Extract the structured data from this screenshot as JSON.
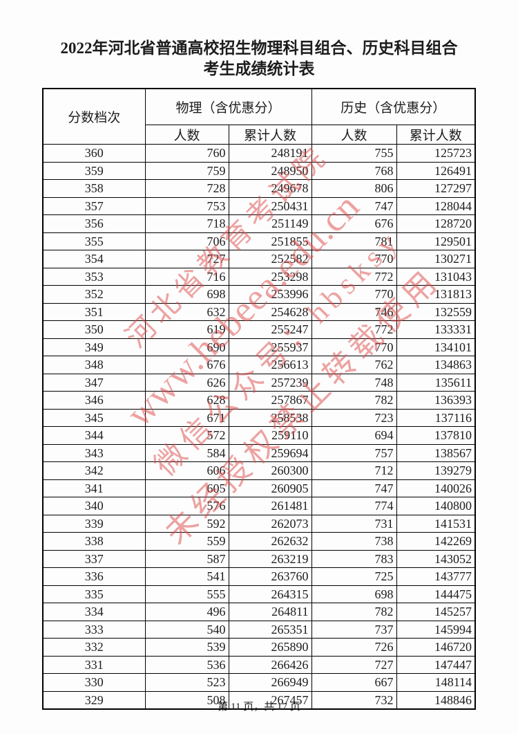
{
  "title": {
    "line1": "2022年河北省普通高校招生物理科目组合、历史科目组合",
    "line2": "考生成绩统计表"
  },
  "watermark": {
    "color_hex": "#dc4a48",
    "lines": [
      "河北省教育考试院",
      "www.hebeea.edu.cn",
      "微信公众号：hbsksy",
      "未经授权禁止转载使用"
    ]
  },
  "table": {
    "header": {
      "score_level": "分数档次",
      "physics_group": "物理（含优惠分）",
      "history_group": "历史（含优惠分）",
      "count": "人数",
      "cumulative": "累计人数"
    },
    "rows": [
      [
        360,
        760,
        248191,
        755,
        125723
      ],
      [
        359,
        759,
        248950,
        768,
        126491
      ],
      [
        358,
        728,
        249678,
        806,
        127297
      ],
      [
        357,
        753,
        250431,
        747,
        128044
      ],
      [
        356,
        718,
        251149,
        676,
        128720
      ],
      [
        355,
        706,
        251855,
        781,
        129501
      ],
      [
        354,
        727,
        252582,
        770,
        130271
      ],
      [
        353,
        716,
        253298,
        772,
        131043
      ],
      [
        352,
        698,
        253996,
        770,
        131813
      ],
      [
        351,
        632,
        254628,
        746,
        132559
      ],
      [
        350,
        619,
        255247,
        772,
        133331
      ],
      [
        349,
        690,
        255937,
        770,
        134101
      ],
      [
        348,
        676,
        256613,
        762,
        134863
      ],
      [
        347,
        626,
        257239,
        748,
        135611
      ],
      [
        346,
        628,
        257867,
        782,
        136393
      ],
      [
        345,
        671,
        258538,
        723,
        137116
      ],
      [
        344,
        572,
        259110,
        694,
        137810
      ],
      [
        343,
        584,
        259694,
        757,
        138567
      ],
      [
        342,
        606,
        260300,
        712,
        139279
      ],
      [
        341,
        605,
        260905,
        747,
        140026
      ],
      [
        340,
        576,
        261481,
        774,
        140800
      ],
      [
        339,
        592,
        262073,
        731,
        141531
      ],
      [
        338,
        559,
        262632,
        738,
        142269
      ],
      [
        337,
        587,
        263219,
        783,
        143052
      ],
      [
        336,
        541,
        263760,
        725,
        143777
      ],
      [
        335,
        555,
        264315,
        698,
        144475
      ],
      [
        334,
        496,
        264811,
        782,
        145257
      ],
      [
        333,
        540,
        265351,
        737,
        145994
      ],
      [
        332,
        539,
        265890,
        726,
        146720
      ],
      [
        331,
        536,
        266426,
        727,
        147447
      ],
      [
        330,
        523,
        266949,
        667,
        148114
      ],
      [
        329,
        508,
        267457,
        732,
        148846
      ]
    ]
  },
  "footer": {
    "page_info": "第 11 页，共 17 页"
  }
}
